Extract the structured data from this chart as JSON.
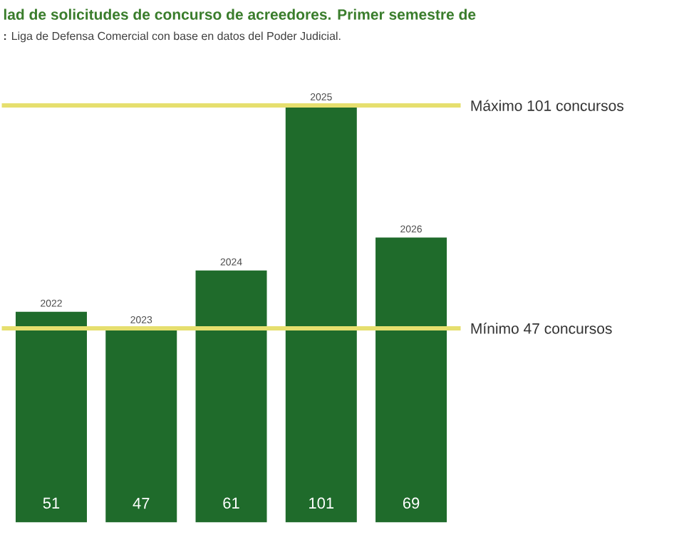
{
  "chart_data": {
    "type": "bar",
    "title": "lad de solicitudes de concurso de acreedores. Primer semestre de",
    "subtitle": "**:** Liga de Defensa Comercial con base en datos del Poder Judicial.",
    "categories": [
      "2022",
      "2023",
      "2024",
      "2025",
      "2026"
    ],
    "values": [
      51,
      47,
      61,
      101,
      69
    ],
    "color": "#1f6b2b",
    "data_labels": true,
    "ref_lines": [
      {
        "axis": "y",
        "value": 101,
        "label": "Máximo 101 concursos",
        "color": "#e6df6e"
      },
      {
        "axis": "y",
        "value": 47,
        "label": "Mínimo 47 concursos",
        "color": "#e6df6e"
      }
    ]
  }
}
